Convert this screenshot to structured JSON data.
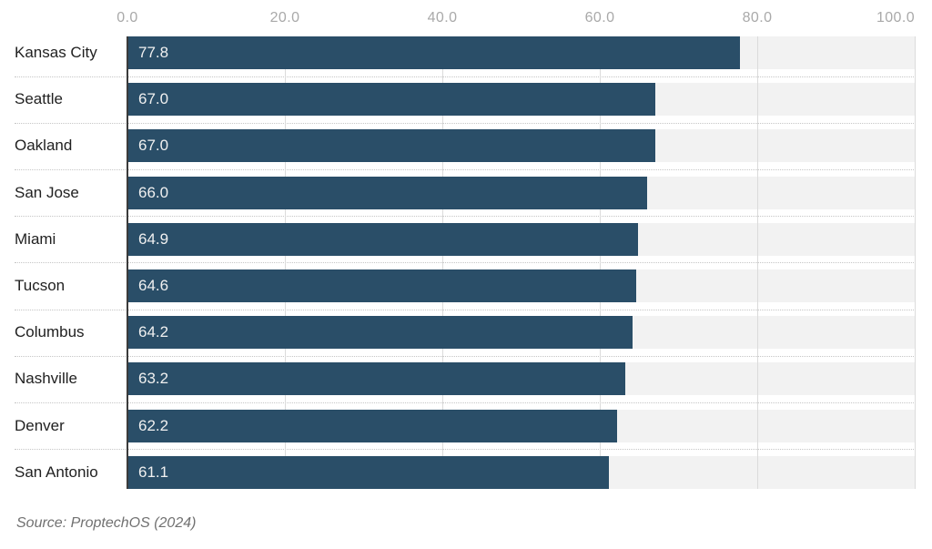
{
  "chart_data": {
    "type": "bar",
    "orientation": "horizontal",
    "categories": [
      "Kansas City",
      "Seattle",
      "Oakland",
      "San Jose",
      "Miami",
      "Tucson",
      "Columbus",
      "Nashville",
      "Denver",
      "San Antonio"
    ],
    "values": [
      77.8,
      67.0,
      67.0,
      66.0,
      64.9,
      64.6,
      64.2,
      63.2,
      62.2,
      61.1
    ],
    "value_labels": [
      "77.8",
      "67.0",
      "67.0",
      "66.0",
      "64.9",
      "64.6",
      "64.2",
      "63.2",
      "62.2",
      "61.1"
    ],
    "x_ticks": [
      "0.0",
      "20.0",
      "40.0",
      "60.0",
      "80.0",
      "100.0"
    ],
    "x_tick_values": [
      0,
      20,
      40,
      60,
      80,
      100
    ],
    "xlim": [
      0,
      100
    ],
    "title": "",
    "xlabel": "",
    "ylabel": "",
    "grid": true,
    "legend": false,
    "source": "Source: ProptechOS (2024)",
    "colors": {
      "bar": "#2a4e68",
      "bar_track": "#f2f2f2",
      "gridline": "#dbdbdb",
      "axis_line": "#3b3b3b",
      "tick_label": "#a9a9a9",
      "category_label": "#212121",
      "value_label": "#f0f0f0",
      "separator": "#c6c6c6",
      "source_text": "#717171"
    }
  }
}
